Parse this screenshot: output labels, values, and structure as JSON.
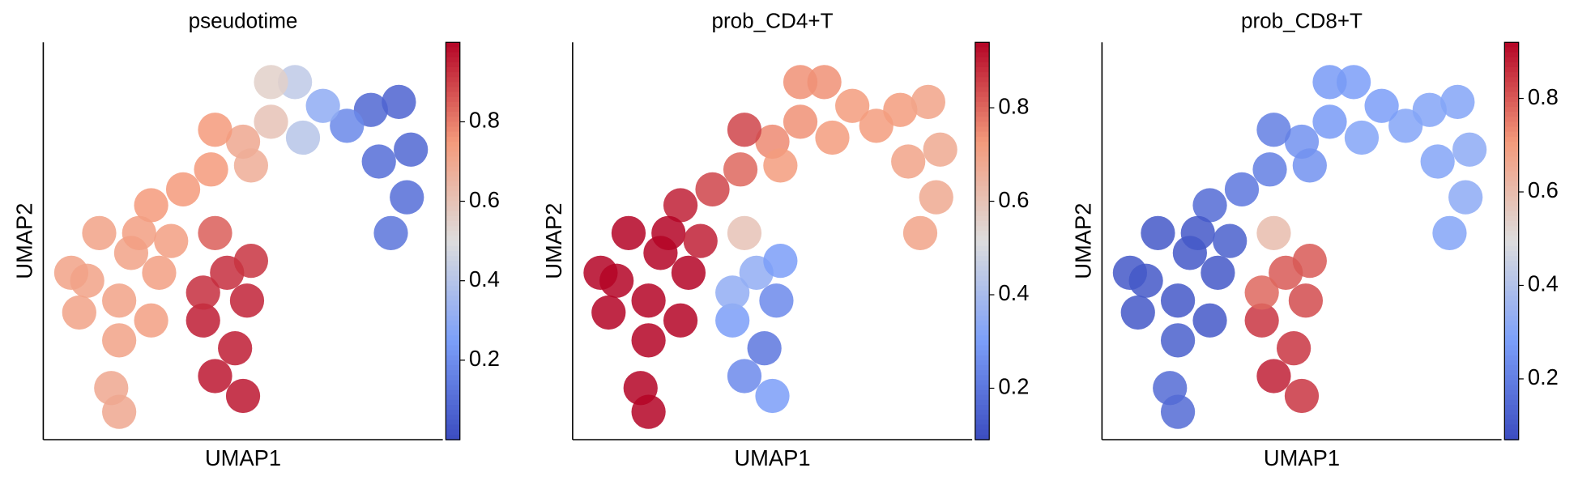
{
  "chart_data": [
    {
      "type": "scatter",
      "title": "pseudotime",
      "x_label": "UMAP1",
      "y_label": "UMAP2",
      "cmap": "coolwarm",
      "clim": [
        0,
        1
      ],
      "cticks": [
        0.2,
        0.4,
        0.6,
        0.8
      ],
      "xlim": [
        0,
        100
      ],
      "ylim": [
        0,
        100
      ],
      "x": [
        82,
        89,
        92,
        91,
        87,
        76,
        70,
        63,
        57,
        57,
        65,
        84,
        50,
        43,
        42,
        35,
        27,
        52,
        14,
        22,
        11,
        19,
        9,
        27,
        19,
        29,
        7,
        43,
        46,
        51,
        40,
        48,
        43,
        50,
        40,
        17,
        19,
        52,
        24,
        32
      ],
      "y": [
        83,
        85,
        73,
        61,
        52,
        79,
        84,
        90,
        90,
        80,
        76,
        70,
        75,
        78,
        68,
        63,
        59,
        69,
        52,
        47,
        40,
        35,
        32,
        30,
        25,
        42,
        42,
        52,
        42,
        35,
        30,
        23,
        16,
        11,
        37,
        13,
        7,
        45,
        52,
        50
      ],
      "values": [
        0.08,
        0.07,
        0.08,
        0.1,
        0.12,
        0.18,
        0.3,
        0.42,
        0.55,
        0.6,
        0.4,
        0.1,
        0.7,
        0.75,
        0.75,
        0.75,
        0.75,
        0.68,
        0.72,
        0.72,
        0.72,
        0.72,
        0.72,
        0.73,
        0.72,
        0.73,
        0.72,
        0.85,
        0.93,
        0.95,
        0.96,
        0.96,
        0.97,
        0.97,
        0.93,
        0.7,
        0.7,
        0.92,
        0.73,
        0.73
      ]
    },
    {
      "type": "scatter",
      "title": "prob_CD4+T",
      "x_label": "UMAP1",
      "y_label": "UMAP2",
      "cmap": "coolwarm",
      "clim": [
        0.09,
        0.94
      ],
      "cticks": [
        0.2,
        0.4,
        0.6,
        0.8
      ],
      "xlim": [
        0,
        100
      ],
      "ylim": [
        0,
        100
      ],
      "x": [
        82,
        89,
        92,
        91,
        87,
        76,
        70,
        63,
        57,
        57,
        65,
        84,
        50,
        43,
        42,
        35,
        27,
        52,
        14,
        22,
        11,
        19,
        9,
        27,
        19,
        29,
        7,
        43,
        46,
        51,
        40,
        48,
        43,
        50,
        40,
        17,
        19,
        52,
        24,
        32
      ],
      "y": [
        83,
        85,
        73,
        61,
        52,
        79,
        84,
        90,
        90,
        80,
        76,
        70,
        75,
        78,
        68,
        63,
        59,
        69,
        52,
        47,
        40,
        35,
        32,
        30,
        25,
        42,
        42,
        52,
        42,
        35,
        30,
        23,
        16,
        11,
        37,
        13,
        7,
        45,
        52,
        50
      ],
      "values": [
        0.72,
        0.7,
        0.68,
        0.68,
        0.7,
        0.72,
        0.72,
        0.74,
        0.74,
        0.74,
        0.72,
        0.7,
        0.75,
        0.85,
        0.8,
        0.85,
        0.9,
        0.72,
        0.94,
        0.94,
        0.94,
        0.94,
        0.94,
        0.94,
        0.94,
        0.94,
        0.94,
        0.6,
        0.35,
        0.25,
        0.3,
        0.2,
        0.25,
        0.3,
        0.35,
        0.94,
        0.94,
        0.3,
        0.94,
        0.9
      ]
    },
    {
      "type": "scatter",
      "title": "prob_CD8+T",
      "x_label": "UMAP1",
      "y_label": "UMAP2",
      "cmap": "coolwarm",
      "clim": [
        0.07,
        0.92
      ],
      "cticks": [
        0.2,
        0.4,
        0.6,
        0.8
      ],
      "xlim": [
        0,
        100
      ],
      "ylim": [
        0,
        100
      ],
      "x": [
        82,
        89,
        92,
        91,
        87,
        76,
        70,
        63,
        57,
        57,
        65,
        84,
        50,
        43,
        42,
        35,
        27,
        52,
        14,
        22,
        11,
        19,
        9,
        27,
        19,
        29,
        7,
        43,
        46,
        51,
        40,
        48,
        43,
        50,
        40,
        17,
        19,
        52,
        24,
        32
      ],
      "y": [
        83,
        85,
        73,
        61,
        52,
        79,
        84,
        90,
        90,
        80,
        76,
        70,
        75,
        78,
        68,
        63,
        59,
        69,
        52,
        47,
        40,
        35,
        32,
        30,
        25,
        42,
        42,
        52,
        42,
        35,
        30,
        23,
        16,
        11,
        37,
        13,
        7,
        45,
        52,
        50
      ],
      "values": [
        0.3,
        0.3,
        0.32,
        0.32,
        0.3,
        0.3,
        0.28,
        0.28,
        0.27,
        0.27,
        0.3,
        0.3,
        0.25,
        0.2,
        0.2,
        0.18,
        0.15,
        0.25,
        0.1,
        0.1,
        0.1,
        0.1,
        0.1,
        0.1,
        0.12,
        0.1,
        0.1,
        0.6,
        0.8,
        0.82,
        0.85,
        0.85,
        0.88,
        0.85,
        0.78,
        0.15,
        0.15,
        0.8,
        0.1,
        0.12
      ]
    }
  ]
}
